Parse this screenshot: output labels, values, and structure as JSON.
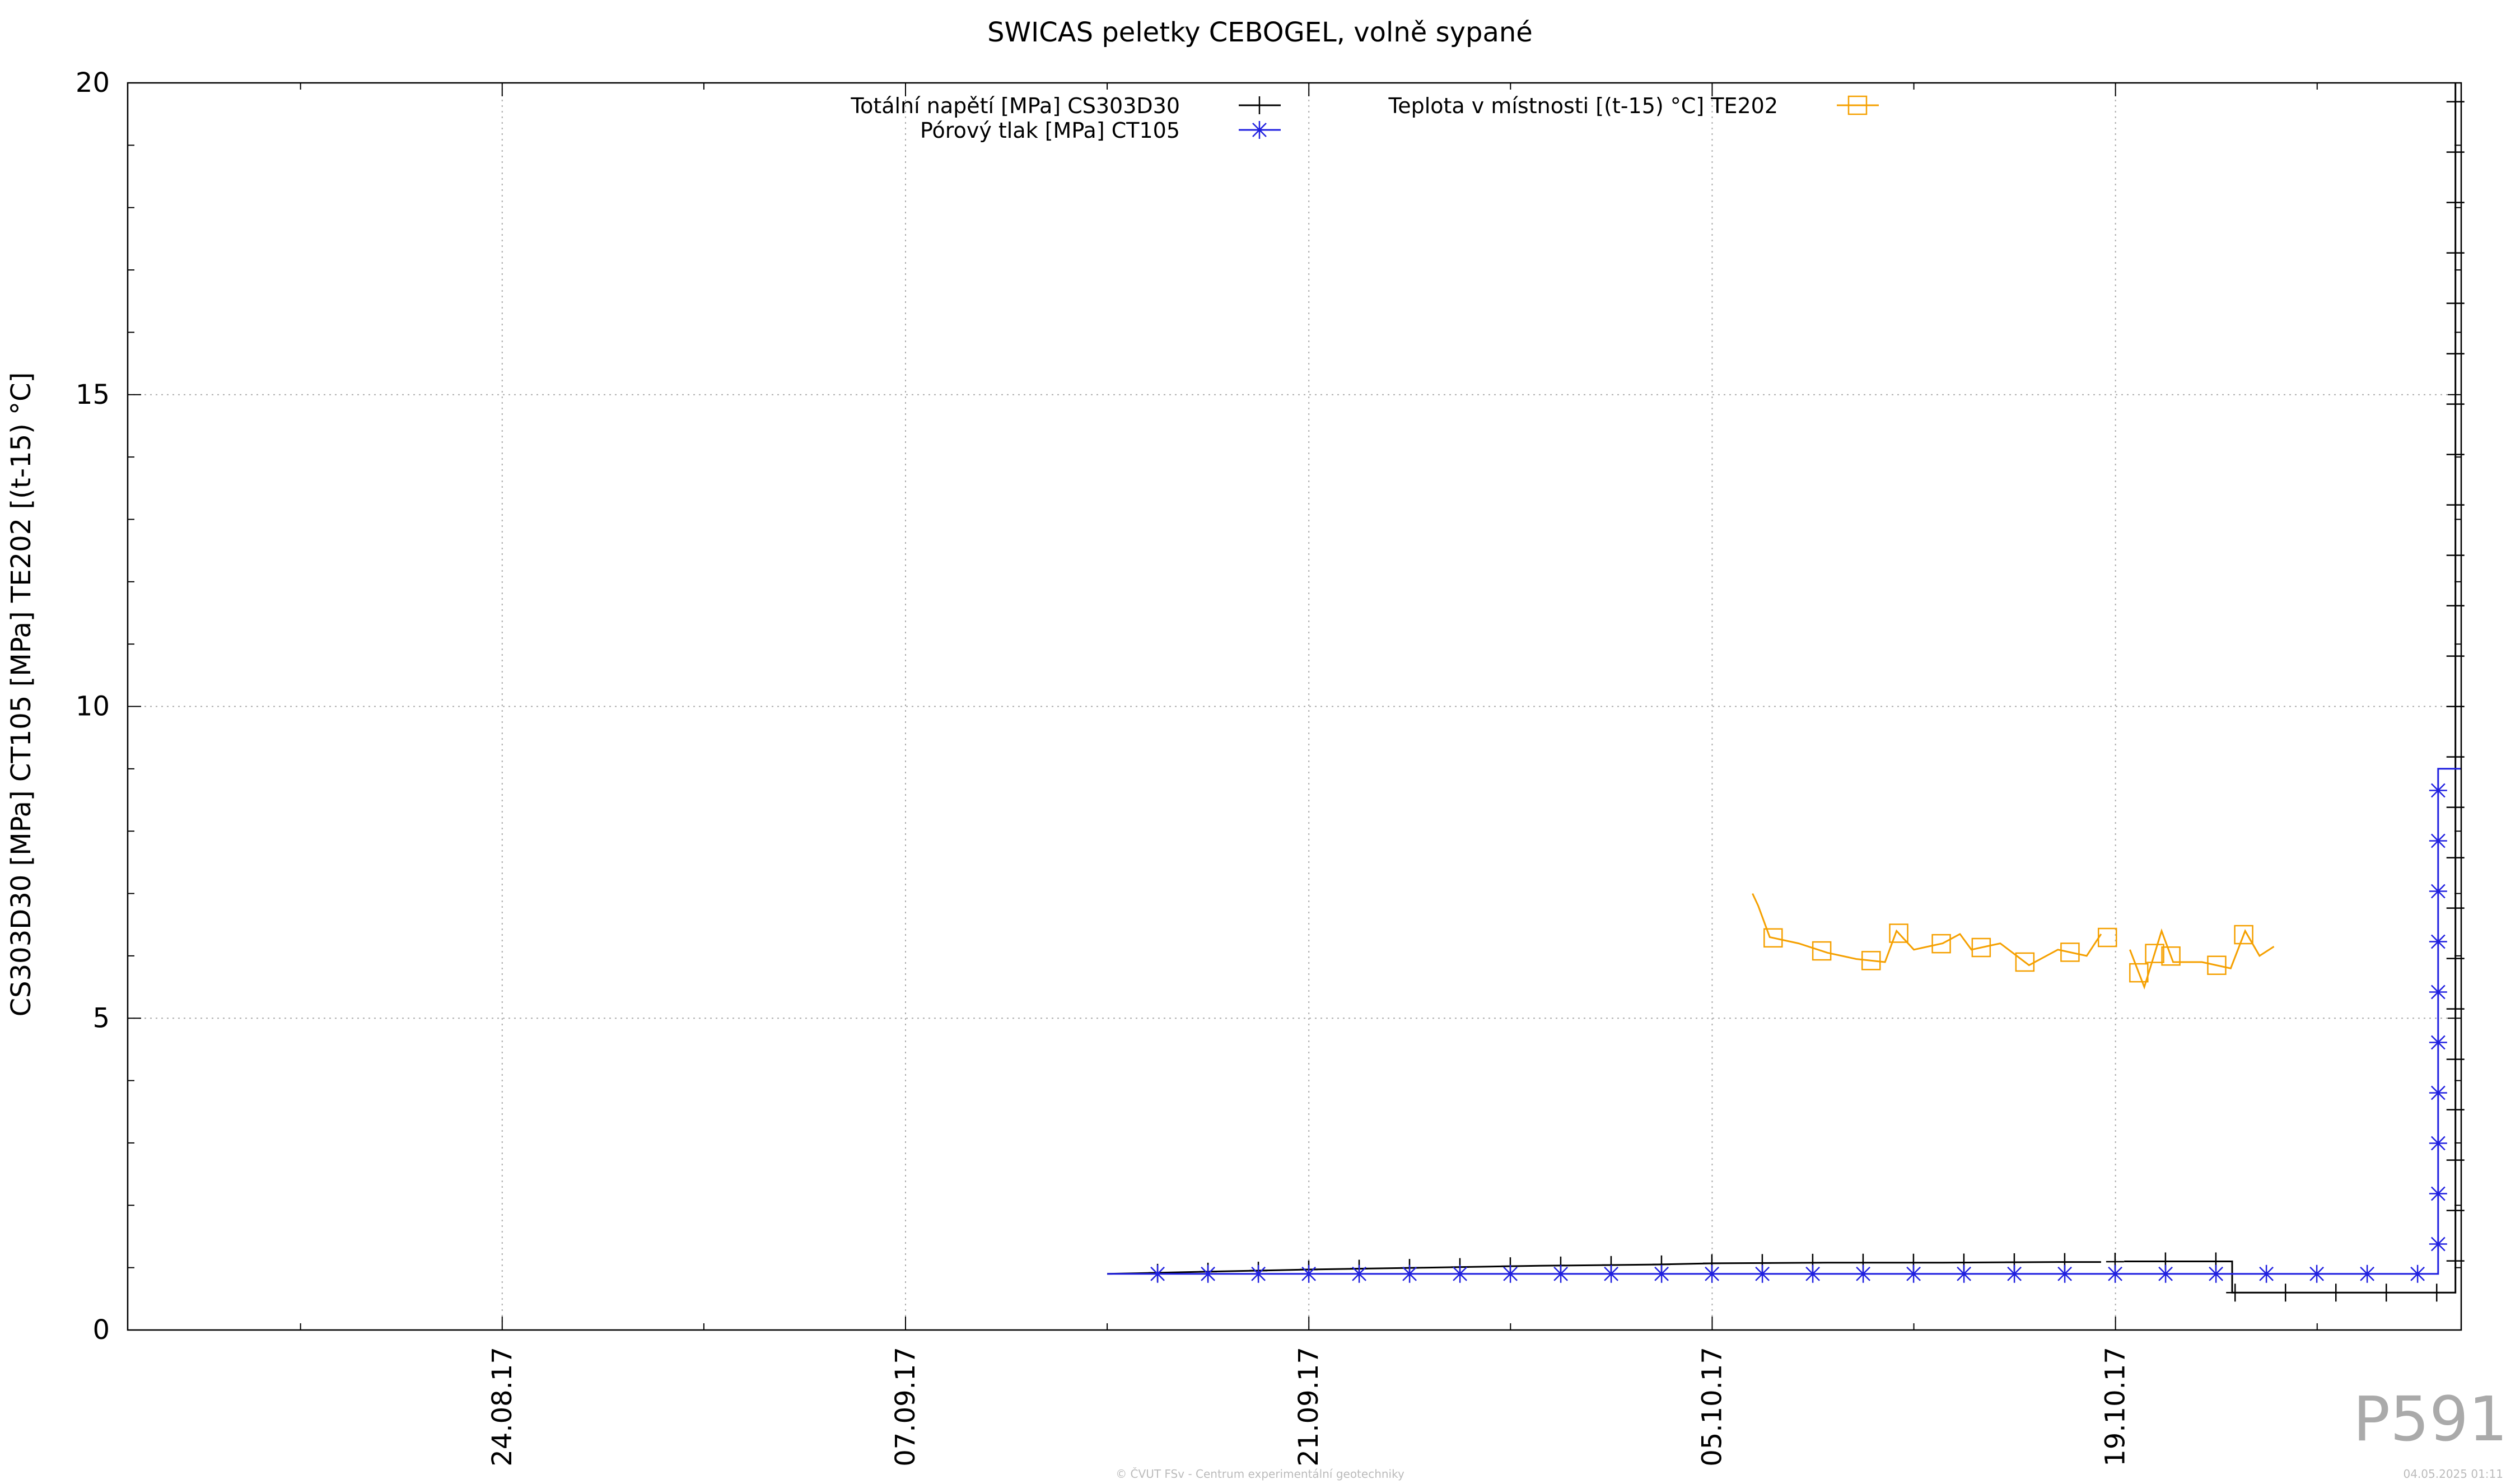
{
  "chart_data": {
    "type": "line",
    "title": "SWICAS peletky CEBOGEL, volně sypané",
    "ylabel": "CS303D30 [MPa] CT105 [MPa] TE202 [(t-15) °C]",
    "xlabel": "",
    "ylim": [
      0,
      20
    ],
    "xlim": [
      "2017-08-11",
      "2017-10-31"
    ],
    "grid": true,
    "legend_position": "top-center",
    "y_ticks": [
      "0",
      "5",
      "10",
      "15",
      "20"
    ],
    "x_ticks": [
      {
        "date": "2017-08-24",
        "label": "24.08.17"
      },
      {
        "date": "2017-09-07",
        "label": "07.09.17"
      },
      {
        "date": "2017-09-21",
        "label": "21.09.17"
      },
      {
        "date": "2017-10-05",
        "label": "05.10.17"
      },
      {
        "date": "2017-10-19",
        "label": "19.10.17"
      }
    ],
    "series": [
      {
        "name": "Totální napětí [MPa] CS303D30",
        "color": "#000000",
        "marker": "plus",
        "points": [
          [
            "2017-09-14",
            0.9
          ],
          [
            "2017-09-17",
            0.93
          ],
          [
            "2017-09-21",
            0.97
          ],
          [
            "2017-09-25",
            1.0
          ],
          [
            "2017-09-29",
            1.03
          ],
          [
            "2017-10-03",
            1.05
          ],
          [
            "2017-10-05",
            1.07
          ],
          [
            "2017-10-09",
            1.08
          ],
          [
            "2017-10-13",
            1.08
          ],
          [
            "2017-10-17",
            1.09
          ],
          [
            "2017-10-18.5",
            1.09
          ],
          [
            "2017-10-19.3",
            1.1
          ],
          [
            "2017-10-23",
            1.1
          ],
          [
            "2017-10-23.05",
            1.1
          ],
          [
            "2017-10-23.05",
            0.6
          ],
          [
            "2017-10-30.8",
            0.6
          ],
          [
            "2017-10-30.8",
            20.0
          ]
        ]
      },
      {
        "name": "Pórový tlak [MPa] CT105",
        "color": "#2020e0",
        "marker": "star",
        "points": [
          [
            "2017-09-14",
            0.9
          ],
          [
            "2017-09-21",
            0.9
          ],
          [
            "2017-10-05",
            0.9
          ],
          [
            "2017-10-18.5",
            0.9
          ],
          [
            "2017-10-19.3",
            0.9
          ],
          [
            "2017-10-30.2",
            0.9
          ],
          [
            "2017-10-30.2",
            9.0
          ],
          [
            "2017-10-31",
            9.0
          ]
        ]
      },
      {
        "name": "Teplota v místnosti [(t-15) °C] TE202",
        "color": "#f5a000",
        "marker": "square",
        "points": [
          [
            "2017-10-06.4",
            7.0
          ],
          [
            "2017-10-06.6",
            6.8
          ],
          [
            "2017-10-07",
            6.3
          ],
          [
            "2017-10-08",
            6.2
          ],
          [
            "2017-10-09",
            6.05
          ],
          [
            "2017-10-10",
            5.95
          ],
          [
            "2017-10-11",
            5.9
          ],
          [
            "2017-10-11.4",
            6.4
          ],
          [
            "2017-10-12",
            6.1
          ],
          [
            "2017-10-13",
            6.2
          ],
          [
            "2017-10-13.6",
            6.35
          ],
          [
            "2017-10-14",
            6.1
          ],
          [
            "2017-10-15",
            6.2
          ],
          [
            "2017-10-16",
            5.85
          ],
          [
            "2017-10-17",
            6.1
          ],
          [
            "2017-10-18",
            6.0
          ],
          [
            "2017-10-18.5",
            6.35
          ],
          [
            "2017-10-19.5",
            6.1
          ],
          [
            "2017-10-20",
            5.5
          ],
          [
            "2017-10-20.6",
            6.4
          ],
          [
            "2017-10-21",
            5.9
          ],
          [
            "2017-10-22",
            5.9
          ],
          [
            "2017-10-23",
            5.8
          ],
          [
            "2017-10-23.5",
            6.4
          ],
          [
            "2017-10-24",
            6.0
          ],
          [
            "2017-10-24.5",
            6.15
          ]
        ]
      }
    ]
  },
  "watermark": "P591",
  "footer": "© ČVUT FSv - Centrum experimentální geotechniky",
  "timestamp": "04.05.2025 01:11"
}
